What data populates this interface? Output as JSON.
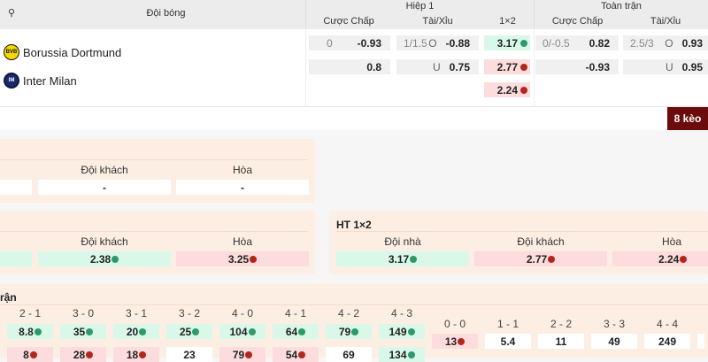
{
  "header": {
    "team_col": "Đội bóng",
    "half1": "Hiệp 1",
    "full": "Toàn trận",
    "sub": [
      "Cược Chấp",
      "Tài/Xỉu",
      "1×2",
      "Cược Chấp",
      "Tài/Xỉu"
    ]
  },
  "teams": [
    {
      "name": "Borussia Dortmund",
      "logo": "BVB"
    },
    {
      "name": "Inter Milan",
      "logo": "IM"
    }
  ],
  "odds": {
    "h1_hdp": [
      {
        "line": "0",
        "value": "-0.93"
      },
      {
        "line": "",
        "value": "0.8"
      }
    ],
    "h1_ou": [
      {
        "line": "1/1.5",
        "side": "O",
        "value": "-0.88"
      },
      {
        "line": "",
        "side": "U",
        "value": "0.75"
      }
    ],
    "h1_1x2": [
      {
        "value": "3.17",
        "trend": "up"
      },
      {
        "value": "2.77",
        "trend": "down"
      },
      {
        "value": "2.24",
        "trend": "down"
      }
    ],
    "ft_hdp": [
      {
        "line": "0/-0.5",
        "value": "0.82"
      },
      {
        "line": "",
        "value": "-0.93"
      }
    ],
    "ft_ou": [
      {
        "line": "2.5/3",
        "side": "O",
        "value": "0.93"
      },
      {
        "line": "",
        "side": "U",
        "value": "0.95"
      }
    ]
  },
  "more_button": "8 kèo",
  "panel1": {
    "labels": [
      "Đội khách",
      "Hòa"
    ],
    "values": [
      "-",
      "-"
    ]
  },
  "panel2": {
    "labels": [
      "Đội khách",
      "Hòa"
    ],
    "values": [
      "2.38",
      "3.25"
    ]
  },
  "ht1x2": {
    "title": "HT 1×2",
    "labels": [
      "Đội nhà",
      "Đội khách",
      "Hòa"
    ],
    "values": [
      "3.17",
      "2.77",
      "2.24"
    ]
  },
  "correct_score": {
    "title_fragment": "rận",
    "scores": [
      "2 - 1",
      "3 - 0",
      "3 - 1",
      "3 - 2",
      "4 - 0",
      "4 - 1",
      "4 - 2",
      "4 - 3"
    ],
    "row1": [
      {
        "v": "8.8",
        "t": "up"
      },
      {
        "v": "35",
        "t": "up"
      },
      {
        "v": "20",
        "t": "up"
      },
      {
        "v": "25",
        "t": "up"
      },
      {
        "v": "104",
        "t": "up"
      },
      {
        "v": "64",
        "t": "up"
      },
      {
        "v": "79",
        "t": "up"
      },
      {
        "v": "149",
        "t": "up"
      }
    ],
    "row2": [
      {
        "v": "8",
        "t": "down"
      },
      {
        "v": "28",
        "t": "down"
      },
      {
        "v": "18",
        "t": "down"
      },
      {
        "v": "23",
        "t": ""
      },
      {
        "v": "79",
        "t": "down"
      },
      {
        "v": "54",
        "t": "down"
      },
      {
        "v": "69",
        "t": ""
      },
      {
        "v": "134",
        "t": "up"
      }
    ],
    "draws": [
      "0 - 0",
      "1 - 1",
      "2 - 2",
      "3 - 3",
      "4 - 4"
    ],
    "draw_values": [
      {
        "v": "13",
        "t": "down"
      },
      {
        "v": "5.4",
        "t": ""
      },
      {
        "v": "11",
        "t": ""
      },
      {
        "v": "49",
        "t": ""
      },
      {
        "v": "249",
        "t": ""
      }
    ]
  },
  "colors": {
    "up": "#2f9a69",
    "down": "#b3261e",
    "button": "#6b0b0b",
    "panel": "#fdeee3"
  }
}
